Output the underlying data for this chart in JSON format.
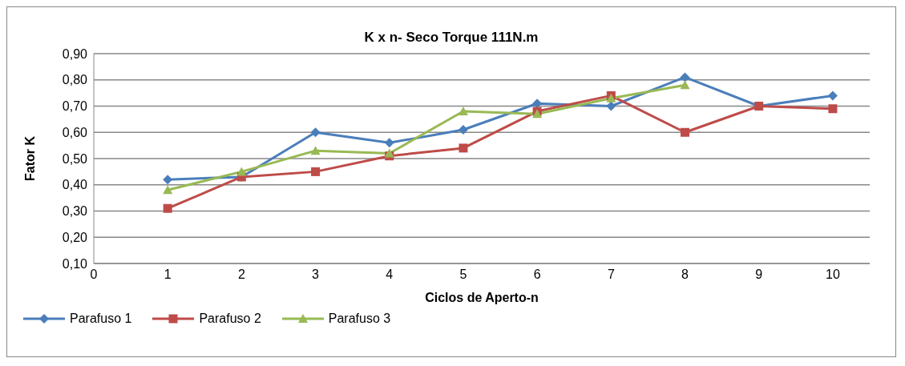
{
  "chart_data": {
    "type": "line",
    "title": "K x n- Seco Torque 111N.m",
    "xlabel": "Ciclos de Aperto-n",
    "ylabel": "Fator K",
    "x": [
      1,
      2,
      3,
      4,
      5,
      6,
      7,
      8,
      9,
      10
    ],
    "series": [
      {
        "name": "Parafuso 1",
        "color": "#4a7ebb",
        "marker": "diamond",
        "values": [
          0.42,
          0.43,
          0.6,
          0.56,
          0.61,
          0.71,
          0.7,
          0.81,
          0.7,
          0.74
        ]
      },
      {
        "name": "Parafuso 2",
        "color": "#be4b48",
        "marker": "square",
        "values": [
          0.31,
          0.43,
          0.45,
          0.51,
          0.54,
          0.68,
          0.74,
          0.6,
          0.7,
          0.69
        ]
      },
      {
        "name": "Parafuso 3",
        "color": "#98b954",
        "marker": "triangle",
        "values": [
          0.38,
          0.45,
          0.53,
          0.52,
          0.68,
          0.67,
          0.73,
          0.78,
          null,
          null
        ]
      }
    ],
    "xlim": [
      0,
      10.5
    ],
    "xticks": [
      0,
      1,
      2,
      3,
      4,
      5,
      6,
      7,
      8,
      9,
      10
    ],
    "ylim": [
      0.1,
      0.9
    ],
    "yticks": [
      {
        "value": 0.1,
        "label": "0,10"
      },
      {
        "value": 0.2,
        "label": "0,20"
      },
      {
        "value": 0.3,
        "label": "0,30"
      },
      {
        "value": 0.4,
        "label": "0,40"
      },
      {
        "value": 0.5,
        "label": "0,50"
      },
      {
        "value": 0.6,
        "label": "0,60"
      },
      {
        "value": 0.7,
        "label": "0,70"
      },
      {
        "value": 0.8,
        "label": "0,80"
      },
      {
        "value": 0.9,
        "label": "0,90"
      }
    ],
    "grid": "y",
    "legend": "bottom left",
    "line_style": "solid"
  }
}
